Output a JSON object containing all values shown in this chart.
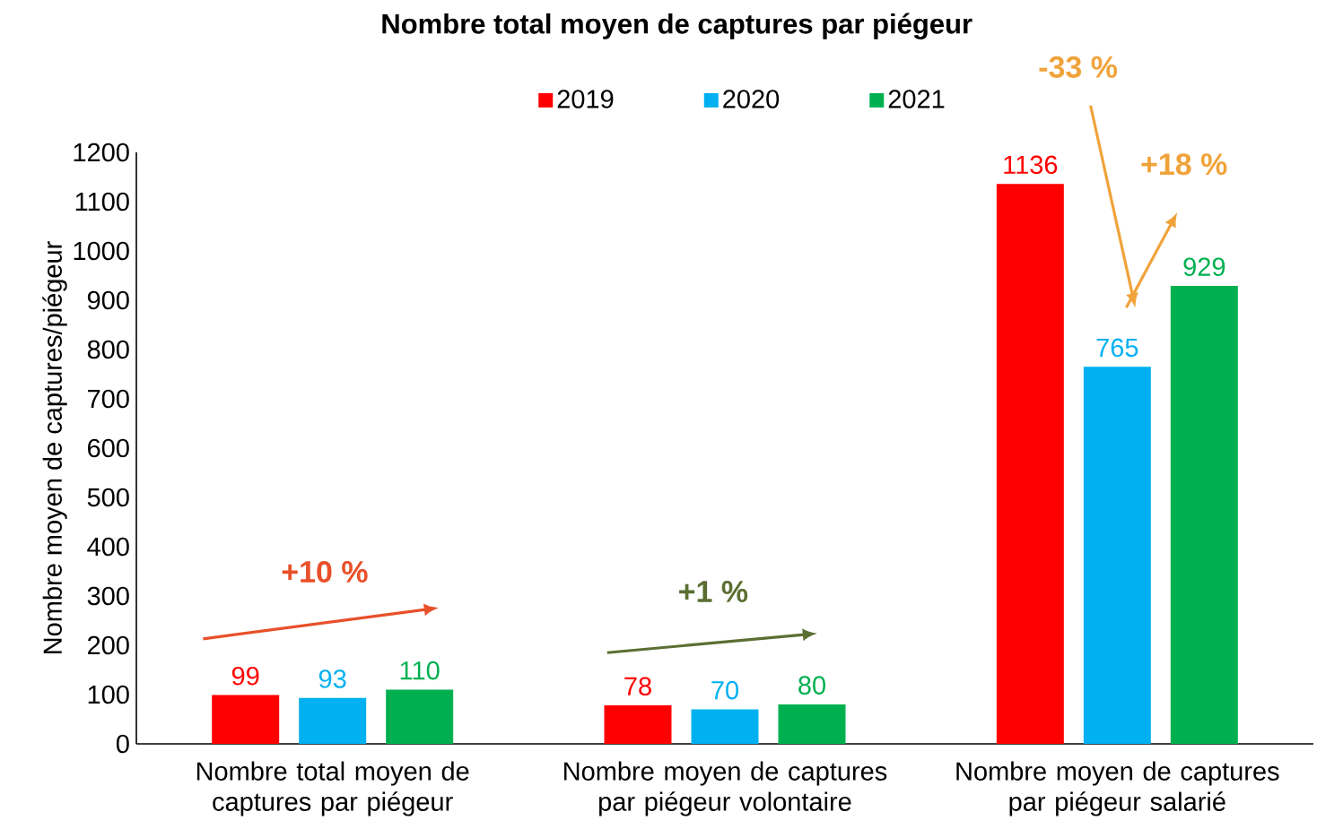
{
  "chart_data": {
    "type": "bar",
    "title": "Nombre total moyen de captures par piégeur",
    "ylabel": "Nombre moyen de captures/piégeur",
    "categories": [
      "Nombre total moyen de captures par piégeur",
      "Nombre moyen de captures par piégeur volontaire",
      "Nombre moyen de captures par piégeur salarié"
    ],
    "series": [
      {
        "name": "2019",
        "color": "#ff0000",
        "values": [
          99,
          78,
          1136
        ]
      },
      {
        "name": "2020",
        "color": "#00b0f0",
        "values": [
          93,
          70,
          765
        ]
      },
      {
        "name": "2021",
        "color": "#00b050",
        "values": [
          110,
          80,
          929
        ]
      }
    ],
    "ylim": [
      0,
      1200
    ],
    "yticks": [
      0,
      100,
      200,
      300,
      400,
      500,
      600,
      700,
      800,
      900,
      1000,
      1100,
      1200
    ],
    "data_labels": true,
    "legend": "top",
    "grid": false,
    "annotations": [
      "+10 %",
      "+1 %",
      "-33 %",
      "+18 %"
    ]
  }
}
